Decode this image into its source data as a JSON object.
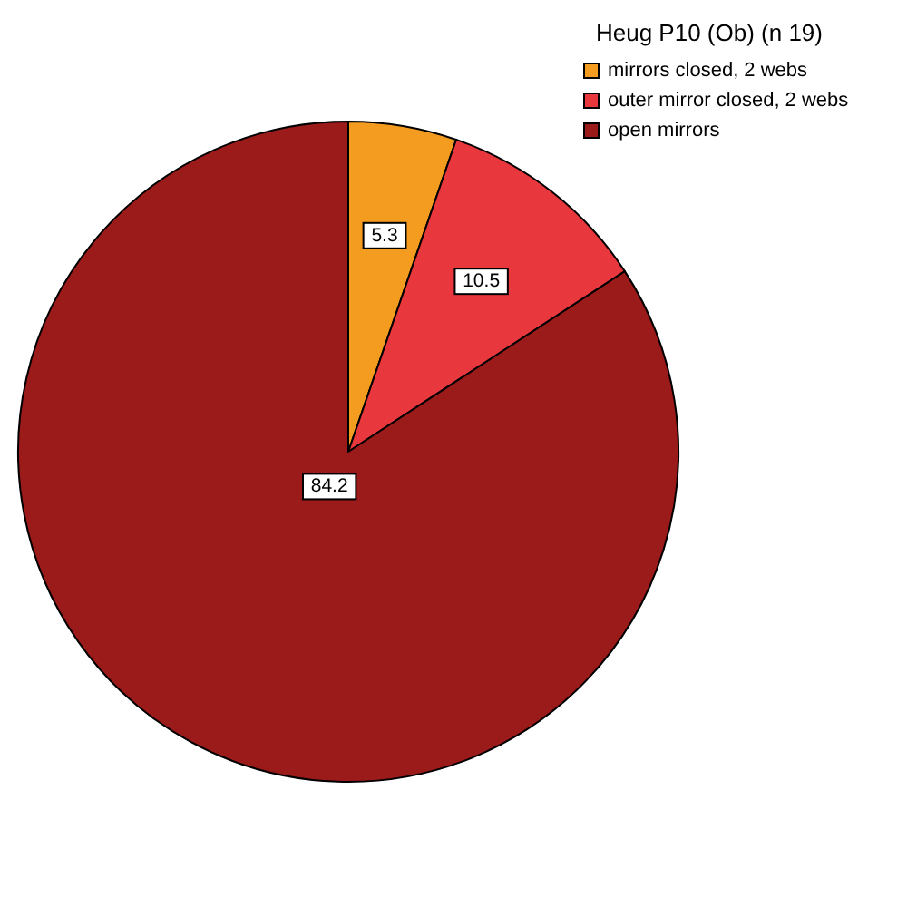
{
  "chart_data": {
    "type": "pie",
    "legend_title": "Heug P10 (Ob) (n 19)",
    "categories": [
      "mirrors closed, 2 webs",
      "outer mirror closed, 2 webs",
      "open mirrors"
    ],
    "values": [
      5.3,
      10.5,
      84.2
    ],
    "colors": [
      "#f39c1f",
      "#e8383d",
      "#9b1a1a"
    ],
    "data_labels": true,
    "legend": "top right"
  }
}
